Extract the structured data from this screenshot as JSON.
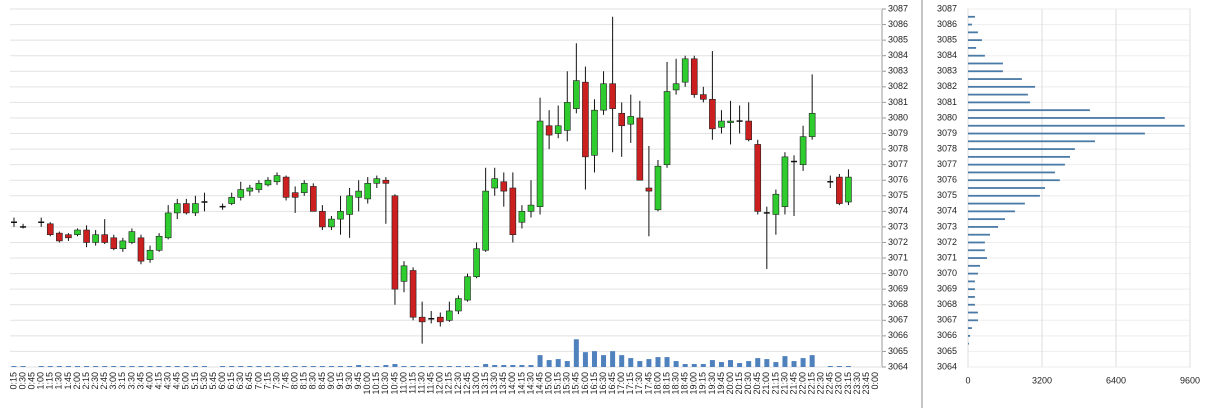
{
  "chart_data": [
    {
      "type": "candlestick",
      "categories": [
        "0:15",
        "0:30",
        "0:45",
        "1:00",
        "1:15",
        "1:30",
        "1:45",
        "2:00",
        "2:15",
        "2:30",
        "2:45",
        "3:00",
        "3:15",
        "3:30",
        "3:45",
        "4:00",
        "4:15",
        "4:30",
        "4:45",
        "5:00",
        "5:15",
        "5:30",
        "5:45",
        "6:00",
        "6:15",
        "6:30",
        "6:45",
        "7:00",
        "7:15",
        "7:30",
        "7:45",
        "8:00",
        "8:15",
        "8:30",
        "8:45",
        "9:00",
        "9:15",
        "9:30",
        "9:45",
        "10:00",
        "10:15",
        "10:30",
        "10:45",
        "11:00",
        "11:15",
        "11:30",
        "11:45",
        "12:00",
        "12:15",
        "12:30",
        "12:45",
        "13:00",
        "13:15",
        "13:30",
        "13:45",
        "14:00",
        "14:15",
        "14:30",
        "14:45",
        "15:00",
        "15:15",
        "15:30",
        "15:45",
        "16:00",
        "16:15",
        "16:30",
        "16:45",
        "17:00",
        "17:15",
        "17:30",
        "17:45",
        "18:00",
        "18:15",
        "18:30",
        "18:45",
        "19:00",
        "19:15",
        "19:30",
        "19:45",
        "20:00",
        "20:15",
        "20:30",
        "20:45",
        "21:00",
        "21:15",
        "21:30",
        "21:45",
        "22:00",
        "22:15",
        "22:30",
        "22:45",
        "23:00",
        "23:15",
        "23:30",
        "23:45",
        "0:00"
      ],
      "open": [
        3073.3,
        3073.0,
        null,
        3073.3,
        3073.2,
        3072.6,
        3072.5,
        3072.5,
        3072.8,
        3072.0,
        3072.5,
        3072.3,
        3071.6,
        3072.0,
        3072.3,
        3070.9,
        3071.5,
        3072.3,
        3073.9,
        3074.5,
        3073.9,
        3074.6,
        null,
        3074.3,
        3074.5,
        3074.9,
        3075.3,
        3075.4,
        3075.7,
        3075.9,
        3076.2,
        3075.2,
        3075.2,
        3075.6,
        3074.0,
        3073.0,
        3073.5,
        3073.8,
        3074.9,
        3074.8,
        3075.8,
        3076.0,
        3075.0,
        3069.5,
        3070.2,
        3067.2,
        3067.1,
        3067.2,
        3067.0,
        3067.6,
        3068.3,
        3069.8,
        3071.5,
        3075.5,
        3075.9,
        3075.5,
        3073.3,
        3074.0,
        3074.3,
        3079.5,
        3079.0,
        3079.2,
        3080.6,
        3082.3,
        3077.6,
        3080.5,
        3082.2,
        3080.3,
        3079.6,
        3080.0,
        3075.5,
        3074.1,
        3077.0,
        3081.8,
        3082.3,
        3083.8,
        3081.5,
        3081.2,
        3079.4,
        3079.7,
        3079.8,
        3079.8,
        3078.3,
        3073.9,
        3073.8,
        3074.3,
        3077.2,
        3077.0,
        3078.8,
        null,
        3075.9,
        3076.2,
        3074.6,
        null,
        null,
        null
      ],
      "high": [
        3073.6,
        3073.2,
        null,
        3073.6,
        3073.3,
        3072.7,
        3072.6,
        3072.9,
        3073.1,
        3072.8,
        3073.5,
        3072.5,
        3072.3,
        3072.9,
        3072.5,
        3071.8,
        3072.6,
        3074.4,
        3074.8,
        3074.8,
        3075.0,
        3075.2,
        null,
        3074.5,
        3075.2,
        3075.9,
        3075.7,
        3076.0,
        3076.2,
        3076.5,
        3076.3,
        3075.6,
        3076.0,
        3075.8,
        3074.4,
        3073.7,
        3075.0,
        3075.5,
        3076.0,
        3076.2,
        3076.3,
        3076.2,
        3075.1,
        3070.8,
        3070.4,
        3068.2,
        3067.6,
        3067.5,
        3068.2,
        3068.6,
        3070.0,
        3072.0,
        3076.8,
        3076.8,
        3076.5,
        3076.5,
        3074.4,
        3076.0,
        3081.3,
        3080.5,
        3080.8,
        3083.0,
        3084.8,
        3083.3,
        3081.2,
        3083.0,
        3086.5,
        3081.0,
        3081.5,
        3081.1,
        3078.2,
        3077.3,
        3083.6,
        3083.8,
        3084.0,
        3084.0,
        3082.0,
        3084.3,
        3080.5,
        3081.1,
        3080.8,
        3081.0,
        3078.6,
        3074.3,
        3075.4,
        3077.8,
        3077.6,
        3079.5,
        3082.8,
        null,
        3076.3,
        3076.4,
        3076.7,
        null,
        null,
        null
      ],
      "low": [
        3073.0,
        3072.9,
        null,
        3073.0,
        3072.4,
        3072.0,
        3072.1,
        3072.4,
        3071.7,
        3071.8,
        3071.9,
        3071.5,
        3071.4,
        3071.9,
        3070.6,
        3070.7,
        3071.4,
        3072.2,
        3073.5,
        3073.8,
        3073.7,
        3074.0,
        null,
        3074.1,
        3074.4,
        3074.7,
        3075.0,
        3075.2,
        3075.6,
        3075.7,
        3074.7,
        3073.9,
        3075.0,
        3074.0,
        3072.8,
        3072.8,
        3072.5,
        3072.3,
        3074.0,
        3074.5,
        3075.5,
        3073.2,
        3068.0,
        3068.8,
        3067.0,
        3065.5,
        3066.8,
        3066.6,
        3066.9,
        3067.4,
        3068.2,
        3069.7,
        3071.4,
        3075.0,
        3074.3,
        3072.0,
        3072.9,
        3073.6,
        3073.8,
        3078.0,
        3078.7,
        3078.5,
        3080.3,
        3075.4,
        3076.5,
        3080.2,
        3077.8,
        3077.5,
        3078.4,
        3076.0,
        3072.4,
        3074.0,
        3076.8,
        3081.5,
        3082.0,
        3081.3,
        3081.0,
        3078.6,
        3079.0,
        3078.3,
        3079.0,
        3078.5,
        3073.8,
        3070.3,
        3072.5,
        3073.8,
        3073.7,
        3076.6,
        3078.6,
        null,
        3075.5,
        3074.4,
        3074.4,
        null,
        null,
        null
      ],
      "close": [
        3073.3,
        3073.0,
        null,
        3073.3,
        3072.5,
        3072.1,
        3072.3,
        3072.8,
        3072.0,
        3072.5,
        3072.0,
        3071.6,
        3072.1,
        3072.7,
        3070.8,
        3071.5,
        3072.4,
        3073.9,
        3074.5,
        3073.9,
        3074.5,
        3074.6,
        null,
        3074.3,
        3074.9,
        3075.4,
        3075.5,
        3075.8,
        3076.0,
        3076.3,
        3074.9,
        3074.9,
        3075.8,
        3074.0,
        3073.0,
        3073.5,
        3074.0,
        3075.0,
        3075.3,
        3075.8,
        3076.1,
        3075.8,
        3069.0,
        3070.5,
        3067.2,
        3066.9,
        3067.1,
        3066.9,
        3067.6,
        3068.4,
        3069.8,
        3071.6,
        3075.3,
        3076.1,
        3075.3,
        3072.5,
        3074.0,
        3074.4,
        3079.8,
        3078.9,
        3079.5,
        3081.0,
        3082.4,
        3077.5,
        3080.5,
        3082.2,
        3080.6,
        3079.5,
        3080.1,
        3076.0,
        3075.3,
        3076.9,
        3081.7,
        3082.2,
        3083.8,
        3081.5,
        3081.2,
        3079.3,
        3079.8,
        3079.8,
        3079.8,
        3078.6,
        3074.0,
        3073.9,
        3075.1,
        3077.5,
        3077.2,
        3078.8,
        3080.3,
        null,
        3075.9,
        3074.5,
        3076.2,
        null,
        null,
        null
      ],
      "volume": [
        300,
        300,
        null,
        300,
        300,
        300,
        300,
        300,
        300,
        300,
        300,
        300,
        300,
        300,
        300,
        300,
        300,
        300,
        300,
        300,
        300,
        300,
        null,
        300,
        300,
        300,
        300,
        300,
        300,
        300,
        300,
        300,
        300,
        300,
        300,
        300,
        300,
        300,
        600,
        300,
        300,
        600,
        900,
        300,
        300,
        300,
        300,
        300,
        300,
        300,
        300,
        300,
        900,
        600,
        600,
        600,
        600,
        600,
        3600,
        2100,
        2400,
        1800,
        8400,
        4500,
        4800,
        3600,
        4800,
        3600,
        2700,
        1800,
        2400,
        3000,
        3000,
        1800,
        900,
        900,
        900,
        2100,
        1500,
        2100,
        1200,
        1800,
        2700,
        2400,
        1500,
        3300,
        1800,
        2700,
        3600,
        null,
        300,
        300,
        300,
        null,
        null,
        null
      ],
      "vlim": [
        0,
        10000
      ],
      "ylim": [
        3064,
        3087
      ],
      "yticks": [
        3064,
        3065,
        3066,
        3067,
        3068,
        3069,
        3070,
        3071,
        3072,
        3073,
        3074,
        3075,
        3076,
        3077,
        3078,
        3079,
        3080,
        3081,
        3082,
        3083,
        3084,
        3085,
        3086,
        3087
      ],
      "grid": true,
      "up_color": "#2ecc2e",
      "down_color": "#cc1f1f",
      "volume_color": "#4f81bd"
    },
    {
      "type": "hbar",
      "y": [
        3065.5,
        3066,
        3066.5,
        3067,
        3067.5,
        3068,
        3068.5,
        3069,
        3069.5,
        3070,
        3070.5,
        3071,
        3071.5,
        3072,
        3072.5,
        3073,
        3073.5,
        3074,
        3074.5,
        3075,
        3075.5,
        3076,
        3076.5,
        3077,
        3077.5,
        3078,
        3078.5,
        3079,
        3079.5,
        3080,
        3080.5,
        3081,
        3081.5,
        3082,
        3082.5,
        3083,
        3083.5,
        3084,
        3084.5,
        3085,
        3085.5,
        3086,
        3086.5
      ],
      "values": [
        40,
        90,
        170,
        430,
        430,
        300,
        300,
        300,
        300,
        430,
        520,
        820,
        730,
        730,
        950,
        1300,
        1600,
        2030,
        2460,
        3110,
        3330,
        3970,
        3760,
        4190,
        4410,
        4620,
        5490,
        7650,
        9370,
        8510,
        5270,
        2680,
        2590,
        2900,
        2330,
        1510,
        1510,
        730,
        350,
        600,
        430,
        170,
        300
      ],
      "xlim": [
        0,
        9600
      ],
      "xticks": [
        0,
        3200,
        6400,
        9600
      ],
      "ylim": [
        3064,
        3087
      ],
      "yticks": [
        3064,
        3065,
        3066,
        3067,
        3068,
        3069,
        3070,
        3071,
        3072,
        3073,
        3074,
        3075,
        3076,
        3077,
        3078,
        3079,
        3080,
        3081,
        3082,
        3083,
        3084,
        3085,
        3086,
        3087
      ],
      "grid": true,
      "color": "#4a7aa6"
    }
  ]
}
